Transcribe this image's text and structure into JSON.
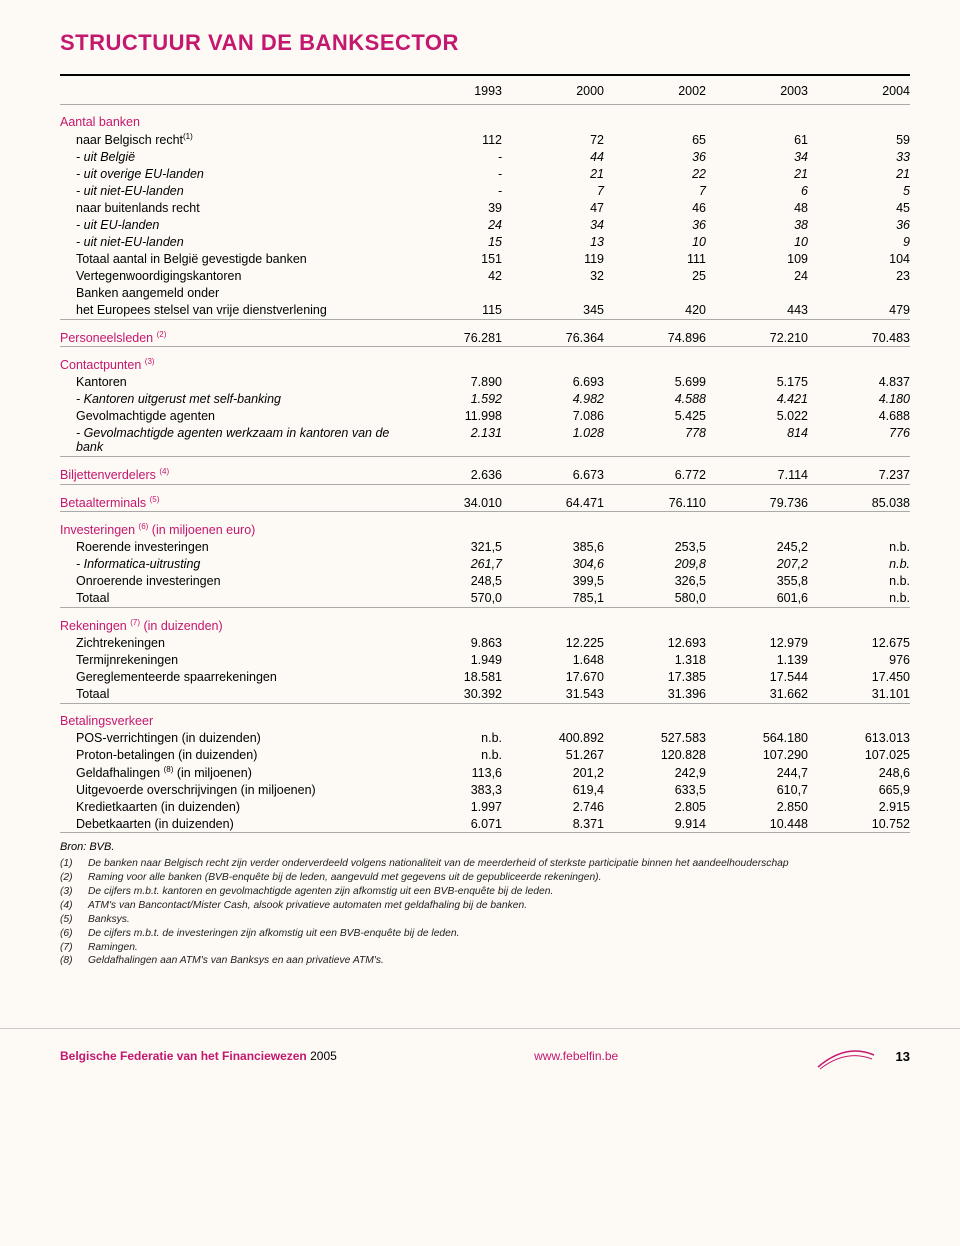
{
  "title": "STRUCTUUR VAN DE BANKSECTOR",
  "colors": {
    "accent": "#c4176e",
    "background": "#fdf9f5",
    "text": "#000000",
    "rule_light": "#aaaaaa"
  },
  "columns": [
    "1993",
    "2000",
    "2002",
    "2003",
    "2004"
  ],
  "sections": [
    {
      "header": "Aantal banken",
      "rows": [
        {
          "label": "naar Belgisch recht",
          "sup": "(1)",
          "sub": 1,
          "vals": [
            "112",
            "72",
            "65",
            "61",
            "59"
          ]
        },
        {
          "label": "- uit België",
          "sub": 2,
          "italic": true,
          "vals": [
            "-",
            "44",
            "36",
            "34",
            "33"
          ]
        },
        {
          "label": "- uit overige EU-landen",
          "sub": 2,
          "italic": true,
          "vals": [
            "-",
            "21",
            "22",
            "21",
            "21"
          ]
        },
        {
          "label": "- uit niet-EU-landen",
          "sub": 2,
          "italic": true,
          "vals": [
            "-",
            "7",
            "7",
            "6",
            "5"
          ]
        },
        {
          "label": "naar buitenlands recht",
          "sub": 1,
          "vals": [
            "39",
            "47",
            "46",
            "48",
            "45"
          ]
        },
        {
          "label": "- uit EU-landen",
          "sub": 2,
          "italic": true,
          "vals": [
            "24",
            "34",
            "36",
            "38",
            "36"
          ]
        },
        {
          "label": "- uit niet-EU-landen",
          "sub": 2,
          "italic": true,
          "vals": [
            "15",
            "13",
            "10",
            "10",
            "9"
          ]
        },
        {
          "label": "Totaal aantal in België gevestigde banken",
          "sub": 1,
          "vals": [
            "151",
            "119",
            "111",
            "109",
            "104"
          ]
        },
        {
          "label": "Vertegenwoordigingskantoren",
          "sub": 1,
          "vals": [
            "42",
            "32",
            "25",
            "24",
            "23"
          ]
        },
        {
          "label": "Banken aangemeld onder",
          "sub": 1,
          "vals": [
            "",
            "",
            "",
            "",
            ""
          ]
        },
        {
          "label": "het Europees stelsel van vrije dienstverlening",
          "sub": 1,
          "vals": [
            "115",
            "345",
            "420",
            "443",
            "479"
          ]
        }
      ]
    },
    {
      "header": "Personeelsleden",
      "header_sup": "(2)",
      "header_vals": [
        "76.281",
        "76.364",
        "74.896",
        "72.210",
        "70.483"
      ]
    },
    {
      "header": "Contactpunten",
      "header_sup": "(3)",
      "rows": [
        {
          "label": "Kantoren",
          "sub": 1,
          "vals": [
            "7.890",
            "6.693",
            "5.699",
            "5.175",
            "4.837"
          ]
        },
        {
          "label": "- Kantoren uitgerust met self-banking",
          "sub": 2,
          "italic": true,
          "vals": [
            "1.592",
            "4.982",
            "4.588",
            "4.421",
            "4.180"
          ]
        },
        {
          "label": "Gevolmachtigde agenten",
          "sub": 1,
          "vals": [
            "11.998",
            "7.086",
            "5.425",
            "5.022",
            "4.688"
          ]
        },
        {
          "label": "- Gevolmachtigde agenten werkzaam in kantoren van de bank",
          "sub": 2,
          "italic": true,
          "vals": [
            "2.131",
            "1.028",
            "778",
            "814",
            "776"
          ]
        }
      ]
    },
    {
      "header": "Biljettenverdelers",
      "header_sup": "(4)",
      "header_vals": [
        "2.636",
        "6.673",
        "6.772",
        "7.114",
        "7.237"
      ]
    },
    {
      "header": "Betaalterminals",
      "header_sup": "(5)",
      "header_vals": [
        "34.010",
        "64.471",
        "76.110",
        "79.736",
        "85.038"
      ]
    },
    {
      "header": "Investeringen",
      "header_sup": "(6)",
      "header_suffix": " (in miljoenen euro)",
      "rows": [
        {
          "label": "Roerende investeringen",
          "sub": 1,
          "vals": [
            "321,5",
            "385,6",
            "253,5",
            "245,2",
            "n.b."
          ]
        },
        {
          "label": "- Informatica-uitrusting",
          "sub": 2,
          "italic": true,
          "vals": [
            "261,7",
            "304,6",
            "209,8",
            "207,2",
            "n.b."
          ]
        },
        {
          "label": "Onroerende investeringen",
          "sub": 1,
          "vals": [
            "248,5",
            "399,5",
            "326,5",
            "355,8",
            "n.b."
          ]
        },
        {
          "label": "Totaal",
          "sub": 1,
          "vals": [
            "570,0",
            "785,1",
            "580,0",
            "601,6",
            "n.b."
          ]
        }
      ]
    },
    {
      "header": "Rekeningen",
      "header_sup": "(7)",
      "header_suffix": " (in duizenden)",
      "rows": [
        {
          "label": "Zichtrekeningen",
          "sub": 1,
          "vals": [
            "9.863",
            "12.225",
            "12.693",
            "12.979",
            "12.675"
          ]
        },
        {
          "label": "Termijnrekeningen",
          "sub": 1,
          "vals": [
            "1.949",
            "1.648",
            "1.318",
            "1.139",
            "976"
          ]
        },
        {
          "label": "Gereglementeerde spaarrekeningen",
          "sub": 1,
          "vals": [
            "18.581",
            "17.670",
            "17.385",
            "17.544",
            "17.450"
          ]
        },
        {
          "label": "Totaal",
          "sub": 1,
          "vals": [
            "30.392",
            "31.543",
            "31.396",
            "31.662",
            "31.101"
          ]
        }
      ]
    },
    {
      "header": "Betalingsverkeer",
      "rows": [
        {
          "label": "POS-verrichtingen (in duizenden)",
          "sub": 1,
          "vals": [
            "n.b.",
            "400.892",
            "527.583",
            "564.180",
            "613.013"
          ]
        },
        {
          "label": "Proton-betalingen (in duizenden)",
          "sub": 1,
          "vals": [
            "n.b.",
            "51.267",
            "120.828",
            "107.290",
            "107.025"
          ]
        },
        {
          "label": "Geldafhalingen ",
          "sup": "(8)",
          "label_suffix": " (in miljoenen)",
          "sub": 1,
          "vals": [
            "113,6",
            "201,2",
            "242,9",
            "244,7",
            "248,6"
          ]
        },
        {
          "label": "Uitgevoerde overschrijvingen (in miljoenen)",
          "sub": 1,
          "vals": [
            "383,3",
            "619,4",
            "633,5",
            "610,7",
            "665,9"
          ]
        },
        {
          "label": "Kredietkaarten (in duizenden)",
          "sub": 1,
          "vals": [
            "1.997",
            "2.746",
            "2.805",
            "2.850",
            "2.915"
          ]
        },
        {
          "label": "Debetkaarten (in duizenden)",
          "sub": 1,
          "vals": [
            "6.071",
            "8.371",
            "9.914",
            "10.448",
            "10.752"
          ]
        }
      ]
    }
  ],
  "bron": "Bron: BVB.",
  "footnotes": [
    {
      "num": "(1)",
      "text": "De banken naar Belgisch recht zijn verder onderverdeeld volgens nationaliteit van de meerderheid of sterkste participatie binnen het aandeelhouderschap"
    },
    {
      "num": "(2)",
      "text": "Raming voor alle banken (BVB-enquête bij de leden, aangevuld met gegevens uit de gepubliceerde rekeningen)."
    },
    {
      "num": "(3)",
      "text": "De cijfers m.b.t. kantoren en gevolmachtigde agenten zijn afkomstig uit een BVB-enquête bij de leden."
    },
    {
      "num": "(4)",
      "text": "ATM's van Bancontact/Mister Cash, alsook privatieve automaten met geldafhaling bij de banken."
    },
    {
      "num": "(5)",
      "text": "Banksys."
    },
    {
      "num": "(6)",
      "text": "De cijfers m.b.t. de investeringen zijn afkomstig uit een BVB-enquête bij de leden."
    },
    {
      "num": "(7)",
      "text": "Ramingen."
    },
    {
      "num": "(8)",
      "text": "Geldafhalingen aan ATM's van Banksys en aan privatieve ATM's."
    }
  ],
  "footer": {
    "left": "Belgische Federatie van het Financiewezen",
    "year": "2005",
    "center": "www.febelfin.be",
    "page": "13"
  }
}
